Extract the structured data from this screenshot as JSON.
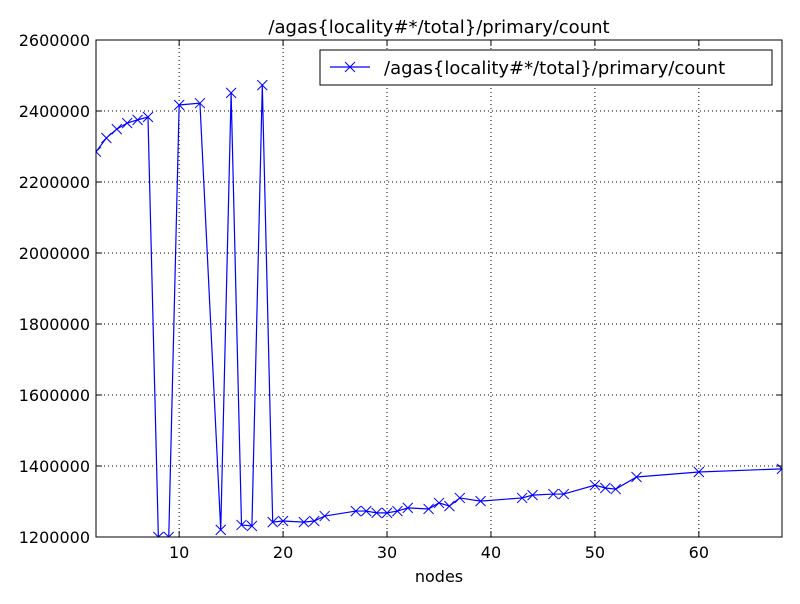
{
  "chart_data": {
    "type": "line",
    "title": "/agas{locality#*/total}/primary/count",
    "xlabel": "nodes",
    "ylabel": "",
    "xlim": [
      2,
      68
    ],
    "ylim": [
      1200000,
      2600000
    ],
    "grid": true,
    "legend_position": "top-right",
    "x_ticks": [
      "10",
      "20",
      "30",
      "40",
      "50",
      "60"
    ],
    "y_ticks": [
      "1200000",
      "1400000",
      "1600000",
      "1800000",
      "2000000",
      "2200000",
      "2400000",
      "2600000"
    ],
    "series": [
      {
        "name": "/agas{locality#*/total}/primary/count",
        "color": "#0000ff",
        "marker": "x",
        "x": [
          2,
          3,
          4,
          5,
          6,
          7,
          8,
          9,
          10,
          12,
          14,
          15,
          16,
          17,
          18,
          19,
          20,
          22,
          23,
          24,
          27,
          28,
          29,
          30,
          31,
          32,
          34,
          35,
          36,
          37,
          39,
          43,
          44,
          46,
          47,
          50,
          51,
          52,
          54,
          60,
          68
        ],
        "y": [
          2285000,
          2324000,
          2349000,
          2366000,
          2375000,
          2383000,
          1200000,
          1200000,
          2417000,
          2422000,
          1220000,
          2451000,
          1234000,
          1231000,
          2473000,
          1242000,
          1245000,
          1242000,
          1245000,
          1259000,
          1273000,
          1273000,
          1268000,
          1268000,
          1273000,
          1282000,
          1279000,
          1296000,
          1287000,
          1310000,
          1301000,
          1310000,
          1318000,
          1321000,
          1321000,
          1346000,
          1338000,
          1335000,
          1369000,
          1383000,
          1392000
        ]
      }
    ]
  }
}
